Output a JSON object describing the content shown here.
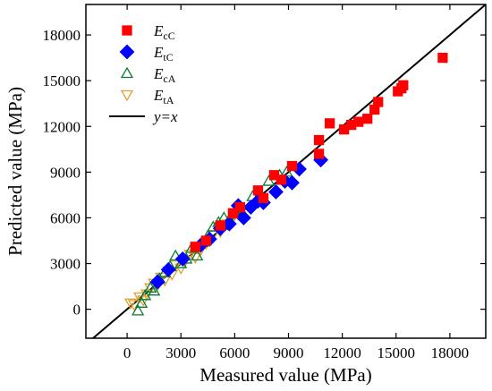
{
  "chart_data": {
    "type": "scatter",
    "xlabel": "Measured value (MPa)",
    "ylabel": "Predicted value (MPa)",
    "xlim": [
      -2300,
      20000
    ],
    "ylim": [
      -1900,
      20000
    ],
    "xticks": [
      0,
      3000,
      6000,
      9000,
      12000,
      15000,
      18000
    ],
    "yticks": [
      0,
      3000,
      6000,
      9000,
      12000,
      15000,
      18000
    ],
    "tick_labels": {
      "x": [
        "0",
        "3000",
        "6000",
        "9000",
        "12000",
        "15000",
        "18000"
      ],
      "y": [
        "0",
        "3000",
        "6000",
        "9000",
        "12000",
        "15000",
        "18000"
      ]
    },
    "legend_position": "top-left",
    "grid": false,
    "reference_line": {
      "label_var": "y",
      "label_rest": "=x",
      "color": "#000000",
      "slope": 1,
      "intercept": 0
    },
    "series": [
      {
        "name_main": "E",
        "name_sub": "cC",
        "marker": "square",
        "color": "#ff0000",
        "filled": true,
        "points": [
          [
            3800,
            4100
          ],
          [
            4400,
            4500
          ],
          [
            5200,
            5500
          ],
          [
            5900,
            6300
          ],
          [
            6300,
            6700
          ],
          [
            7300,
            7800
          ],
          [
            7600,
            7300
          ],
          [
            8200,
            8800
          ],
          [
            8600,
            8500
          ],
          [
            9200,
            9400
          ],
          [
            10700,
            11100
          ],
          [
            10700,
            10200
          ],
          [
            11300,
            12200
          ],
          [
            12100,
            11800
          ],
          [
            12500,
            12100
          ],
          [
            12900,
            12300
          ],
          [
            13400,
            12500
          ],
          [
            13800,
            13100
          ],
          [
            14000,
            13600
          ],
          [
            15100,
            14300
          ],
          [
            15400,
            14700
          ],
          [
            15300,
            14500
          ],
          [
            17600,
            16500
          ]
        ]
      },
      {
        "name_main": "E",
        "name_sub": "tC",
        "marker": "diamond",
        "color": "#0000ff",
        "filled": true,
        "points": [
          [
            1700,
            1800
          ],
          [
            2300,
            2600
          ],
          [
            3100,
            3300
          ],
          [
            4100,
            4200
          ],
          [
            4600,
            4600
          ],
          [
            5200,
            5300
          ],
          [
            5700,
            5600
          ],
          [
            6200,
            6800
          ],
          [
            6500,
            6000
          ],
          [
            6900,
            6700
          ],
          [
            7300,
            7100
          ],
          [
            7600,
            7000
          ],
          [
            8300,
            7700
          ],
          [
            8800,
            8400
          ],
          [
            9200,
            8300
          ],
          [
            9600,
            9200
          ],
          [
            10800,
            9800
          ]
        ]
      },
      {
        "name_main": "E",
        "name_sub": "cA",
        "marker": "triangle-up",
        "color": "#0a7a3a",
        "filled": false,
        "points": [
          [
            600,
            -100
          ],
          [
            800,
            400
          ],
          [
            1000,
            900
          ],
          [
            1300,
            1400
          ],
          [
            1500,
            1200
          ],
          [
            1800,
            2000
          ],
          [
            2100,
            2400
          ],
          [
            2400,
            2800
          ],
          [
            2700,
            3500
          ],
          [
            3000,
            3000
          ],
          [
            3300,
            3300
          ],
          [
            3600,
            4000
          ],
          [
            3900,
            3500
          ],
          [
            4200,
            4400
          ],
          [
            4500,
            4800
          ],
          [
            4800,
            5400
          ],
          [
            5100,
            5700
          ],
          [
            5400,
            6000
          ],
          [
            5700,
            5900
          ],
          [
            6000,
            6300
          ],
          [
            6300,
            6600
          ],
          [
            7000,
            7400
          ],
          [
            7900,
            8400
          ],
          [
            8500,
            8800
          ],
          [
            8900,
            9000
          ]
        ]
      },
      {
        "name_main": "E",
        "name_sub": "tA",
        "marker": "triangle-down",
        "color": "#e0a030",
        "filled": false,
        "points": [
          [
            200,
            400
          ],
          [
            400,
            300
          ],
          [
            700,
            800
          ],
          [
            900,
            600
          ],
          [
            1100,
            1000
          ],
          [
            1300,
            1400
          ],
          [
            1500,
            1700
          ],
          [
            1700,
            1600
          ],
          [
            1900,
            2100
          ],
          [
            2100,
            1900
          ],
          [
            2300,
            2500
          ],
          [
            2500,
            2300
          ],
          [
            2700,
            2900
          ],
          [
            3000,
            2700
          ],
          [
            3200,
            3200
          ],
          [
            3500,
            3600
          ],
          [
            3800,
            3400
          ],
          [
            4100,
            3900
          ],
          [
            4400,
            4300
          ],
          [
            4800,
            4900
          ],
          [
            5200,
            5100
          ],
          [
            5600,
            5600
          ],
          [
            6000,
            6200
          ]
        ]
      }
    ]
  }
}
